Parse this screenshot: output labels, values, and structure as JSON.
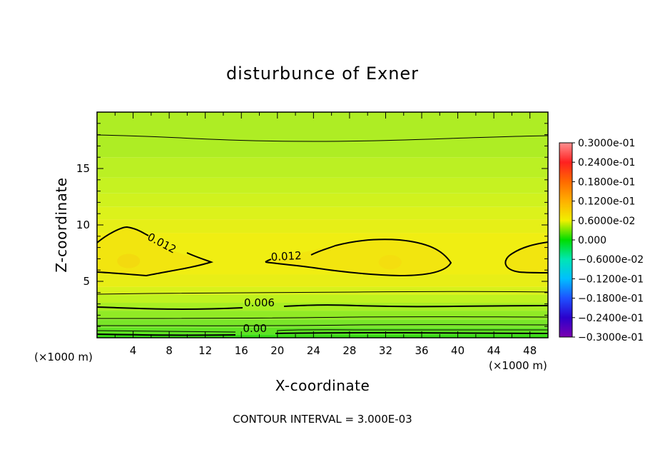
{
  "chart_data": {
    "type": "heatmap",
    "title": "disturbunce of Exner",
    "xlabel": "X-coordinate",
    "ylabel": "Z-coordinate",
    "xunit": "(×1000 m)",
    "x_range": [
      0,
      50
    ],
    "y_range": [
      0,
      20
    ],
    "x_ticks": [
      4,
      8,
      12,
      16,
      20,
      24,
      28,
      32,
      36,
      40,
      44,
      48
    ],
    "y_ticks": [
      5,
      10,
      15
    ],
    "contour_interval_text": "CONTOUR INTERVAL = 3.000E-03",
    "contour_labels": [
      {
        "text": "0.012",
        "x": 7,
        "z": 8.1,
        "angle": 28
      },
      {
        "text": "0.012",
        "x": 21,
        "z": 6.9,
        "angle": -3
      },
      {
        "text": "0.006",
        "x": 18,
        "z": 2.8,
        "angle": 0
      },
      {
        "text": "0.00",
        "x": 17.5,
        "z": 0.5,
        "angle": 0
      }
    ],
    "colorbar": {
      "range": [
        -0.03,
        0.03
      ],
      "labels": [
        "0.3000e-01",
        "0.2400e-01",
        "0.1800e-01",
        "0.1200e-01",
        "0.6000e-02",
        "0.000",
        "−0.6000e-02",
        "−0.1200e-01",
        "−0.1800e-01",
        "−0.2400e-01",
        "−0.3000e-01"
      ]
    },
    "bands": [
      {
        "z": [
          0.0,
          0.3
        ],
        "value": 0.0,
        "color": "#37dc14"
      },
      {
        "z": [
          0.3,
          0.9
        ],
        "value": 0.002,
        "color": "#5fe223"
      },
      {
        "z": [
          0.9,
          1.6
        ],
        "value": 0.003,
        "color": "#79e528"
      },
      {
        "z": [
          1.6,
          2.4
        ],
        "value": 0.005,
        "color": "#91ea25"
      },
      {
        "z": [
          2.4,
          3.1
        ],
        "value": 0.006,
        "color": "#a8ef22"
      },
      {
        "z": [
          3.1,
          3.8
        ],
        "value": 0.008,
        "color": "#bff21f"
      },
      {
        "z": [
          3.8,
          4.5
        ],
        "value": 0.01,
        "color": "#d8f21b"
      },
      {
        "z": [
          4.5,
          5.6
        ],
        "value": 0.011,
        "color": "#e8ee16"
      },
      {
        "z": [
          5.6,
          9.3
        ],
        "value": 0.012,
        "color": "#f0ee12"
      },
      {
        "z": [
          9.3,
          10.5
        ],
        "value": 0.011,
        "color": "#e6ef17"
      },
      {
        "z": [
          10.5,
          11.6
        ],
        "value": 0.01,
        "color": "#dcf21b"
      },
      {
        "z": [
          11.6,
          12.8
        ],
        "value": 0.009,
        "color": "#d0f21e"
      },
      {
        "z": [
          12.8,
          14.2
        ],
        "value": 0.008,
        "color": "#c6f221"
      },
      {
        "z": [
          14.2,
          16.0
        ],
        "value": 0.007,
        "color": "#bbf023"
      },
      {
        "z": [
          16.0,
          20.0
        ],
        "value": 0.006,
        "color": "#aeed24"
      }
    ],
    "maxima": [
      {
        "x": 3.5,
        "z": 6.8,
        "color": "#f3da0f"
      },
      {
        "x": 32.5,
        "z": 6.7,
        "color": "#f4de0f"
      }
    ]
  }
}
